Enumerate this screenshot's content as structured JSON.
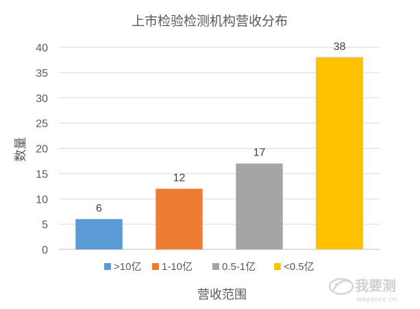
{
  "chart_data": {
    "type": "bar",
    "title": "上市检验检测机构营收分布",
    "xlabel": "营收范围",
    "ylabel": "数量",
    "ylim": [
      0,
      40
    ],
    "yticks": [
      0,
      5,
      10,
      15,
      20,
      25,
      30,
      35,
      40
    ],
    "grid": true,
    "legend_position": "bottom",
    "categories": [
      ">10亿",
      "1-10亿",
      "0.5-1亿",
      "<0.5亿"
    ],
    "series": [
      {
        "values": [
          6,
          12,
          17,
          38
        ],
        "colors": [
          "#5b9bd5",
          "#ed7d31",
          "#a5a5a5",
          "#ffc000"
        ],
        "data_labels": [
          "6",
          "12",
          "17",
          "38"
        ]
      }
    ],
    "legend": [
      {
        "label": ">10亿",
        "color": "#5b9bd5"
      },
      {
        "label": "1-10亿",
        "color": "#ed7d31"
      },
      {
        "label": "0.5-1亿",
        "color": "#a5a5a5"
      },
      {
        "label": "<0.5亿",
        "color": "#ffc000"
      }
    ]
  },
  "watermark": {
    "brand": "我要测",
    "url": "woyaoce.cn",
    "icon": "woyaoce-logo-icon"
  }
}
